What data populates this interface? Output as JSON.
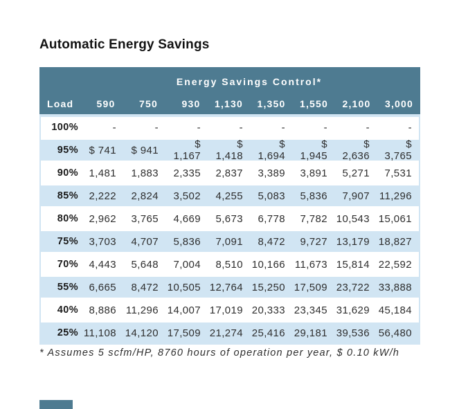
{
  "title": "Automatic Energy Savings",
  "table": {
    "header_title": "Energy Savings Control*",
    "columns": [
      "Load",
      "590",
      "750",
      "930",
      "1,130",
      "1,350",
      "1,550",
      "2,100",
      "3,000"
    ],
    "rows": [
      {
        "load": "100%",
        "values": [
          "-",
          "-",
          "-",
          "-",
          "-",
          "-",
          "-",
          "-"
        ]
      },
      {
        "load": "95%",
        "values": [
          "$ 741",
          "$ 941",
          "$ 1,167",
          "$ 1,418",
          "$ 1,694",
          "$ 1,945",
          "$ 2,636",
          "$ 3,765"
        ]
      },
      {
        "load": "90%",
        "values": [
          "1,481",
          "1,883",
          "2,335",
          "2,837",
          "3,389",
          "3,891",
          "5,271",
          "7,531"
        ]
      },
      {
        "load": "85%",
        "values": [
          "2,222",
          "2,824",
          "3,502",
          "4,255",
          "5,083",
          "5,836",
          "7,907",
          "11,296"
        ]
      },
      {
        "load": "80%",
        "values": [
          "2,962",
          "3,765",
          "4,669",
          "5,673",
          "6,778",
          "7,782",
          "10,543",
          "15,061"
        ]
      },
      {
        "load": "75%",
        "values": [
          "3,703",
          "4,707",
          "5,836",
          "7,091",
          "8,472",
          "9,727",
          "13,179",
          "18,827"
        ]
      },
      {
        "load": "70%",
        "values": [
          "4,443",
          "5,648",
          "7,004",
          "8,510",
          "10,166",
          "11,673",
          "15,814",
          "22,592"
        ]
      },
      {
        "load": "55%",
        "values": [
          "6,665",
          "8,472",
          "10,505",
          "12,764",
          "15,250",
          "17,509",
          "23,722",
          "33,888"
        ]
      },
      {
        "load": "40%",
        "values": [
          "8,886",
          "11,296",
          "14,007",
          "17,019",
          "20,333",
          "23,345",
          "31,629",
          "45,184"
        ]
      },
      {
        "load": "25%",
        "values": [
          "11,108",
          "14,120",
          "17,509",
          "21,274",
          "25,416",
          "29,181",
          "39,536",
          "56,480"
        ]
      }
    ]
  },
  "footnote": "* Assumes 5 scfm/HP, 8760 hours of operation per year, $ 0.10 kW/h",
  "colors": {
    "header_bg": "#4e7b91",
    "header_text": "#ffffff",
    "stripe_bg": "#d1e5f3",
    "body_text": "#2e2e2e"
  }
}
